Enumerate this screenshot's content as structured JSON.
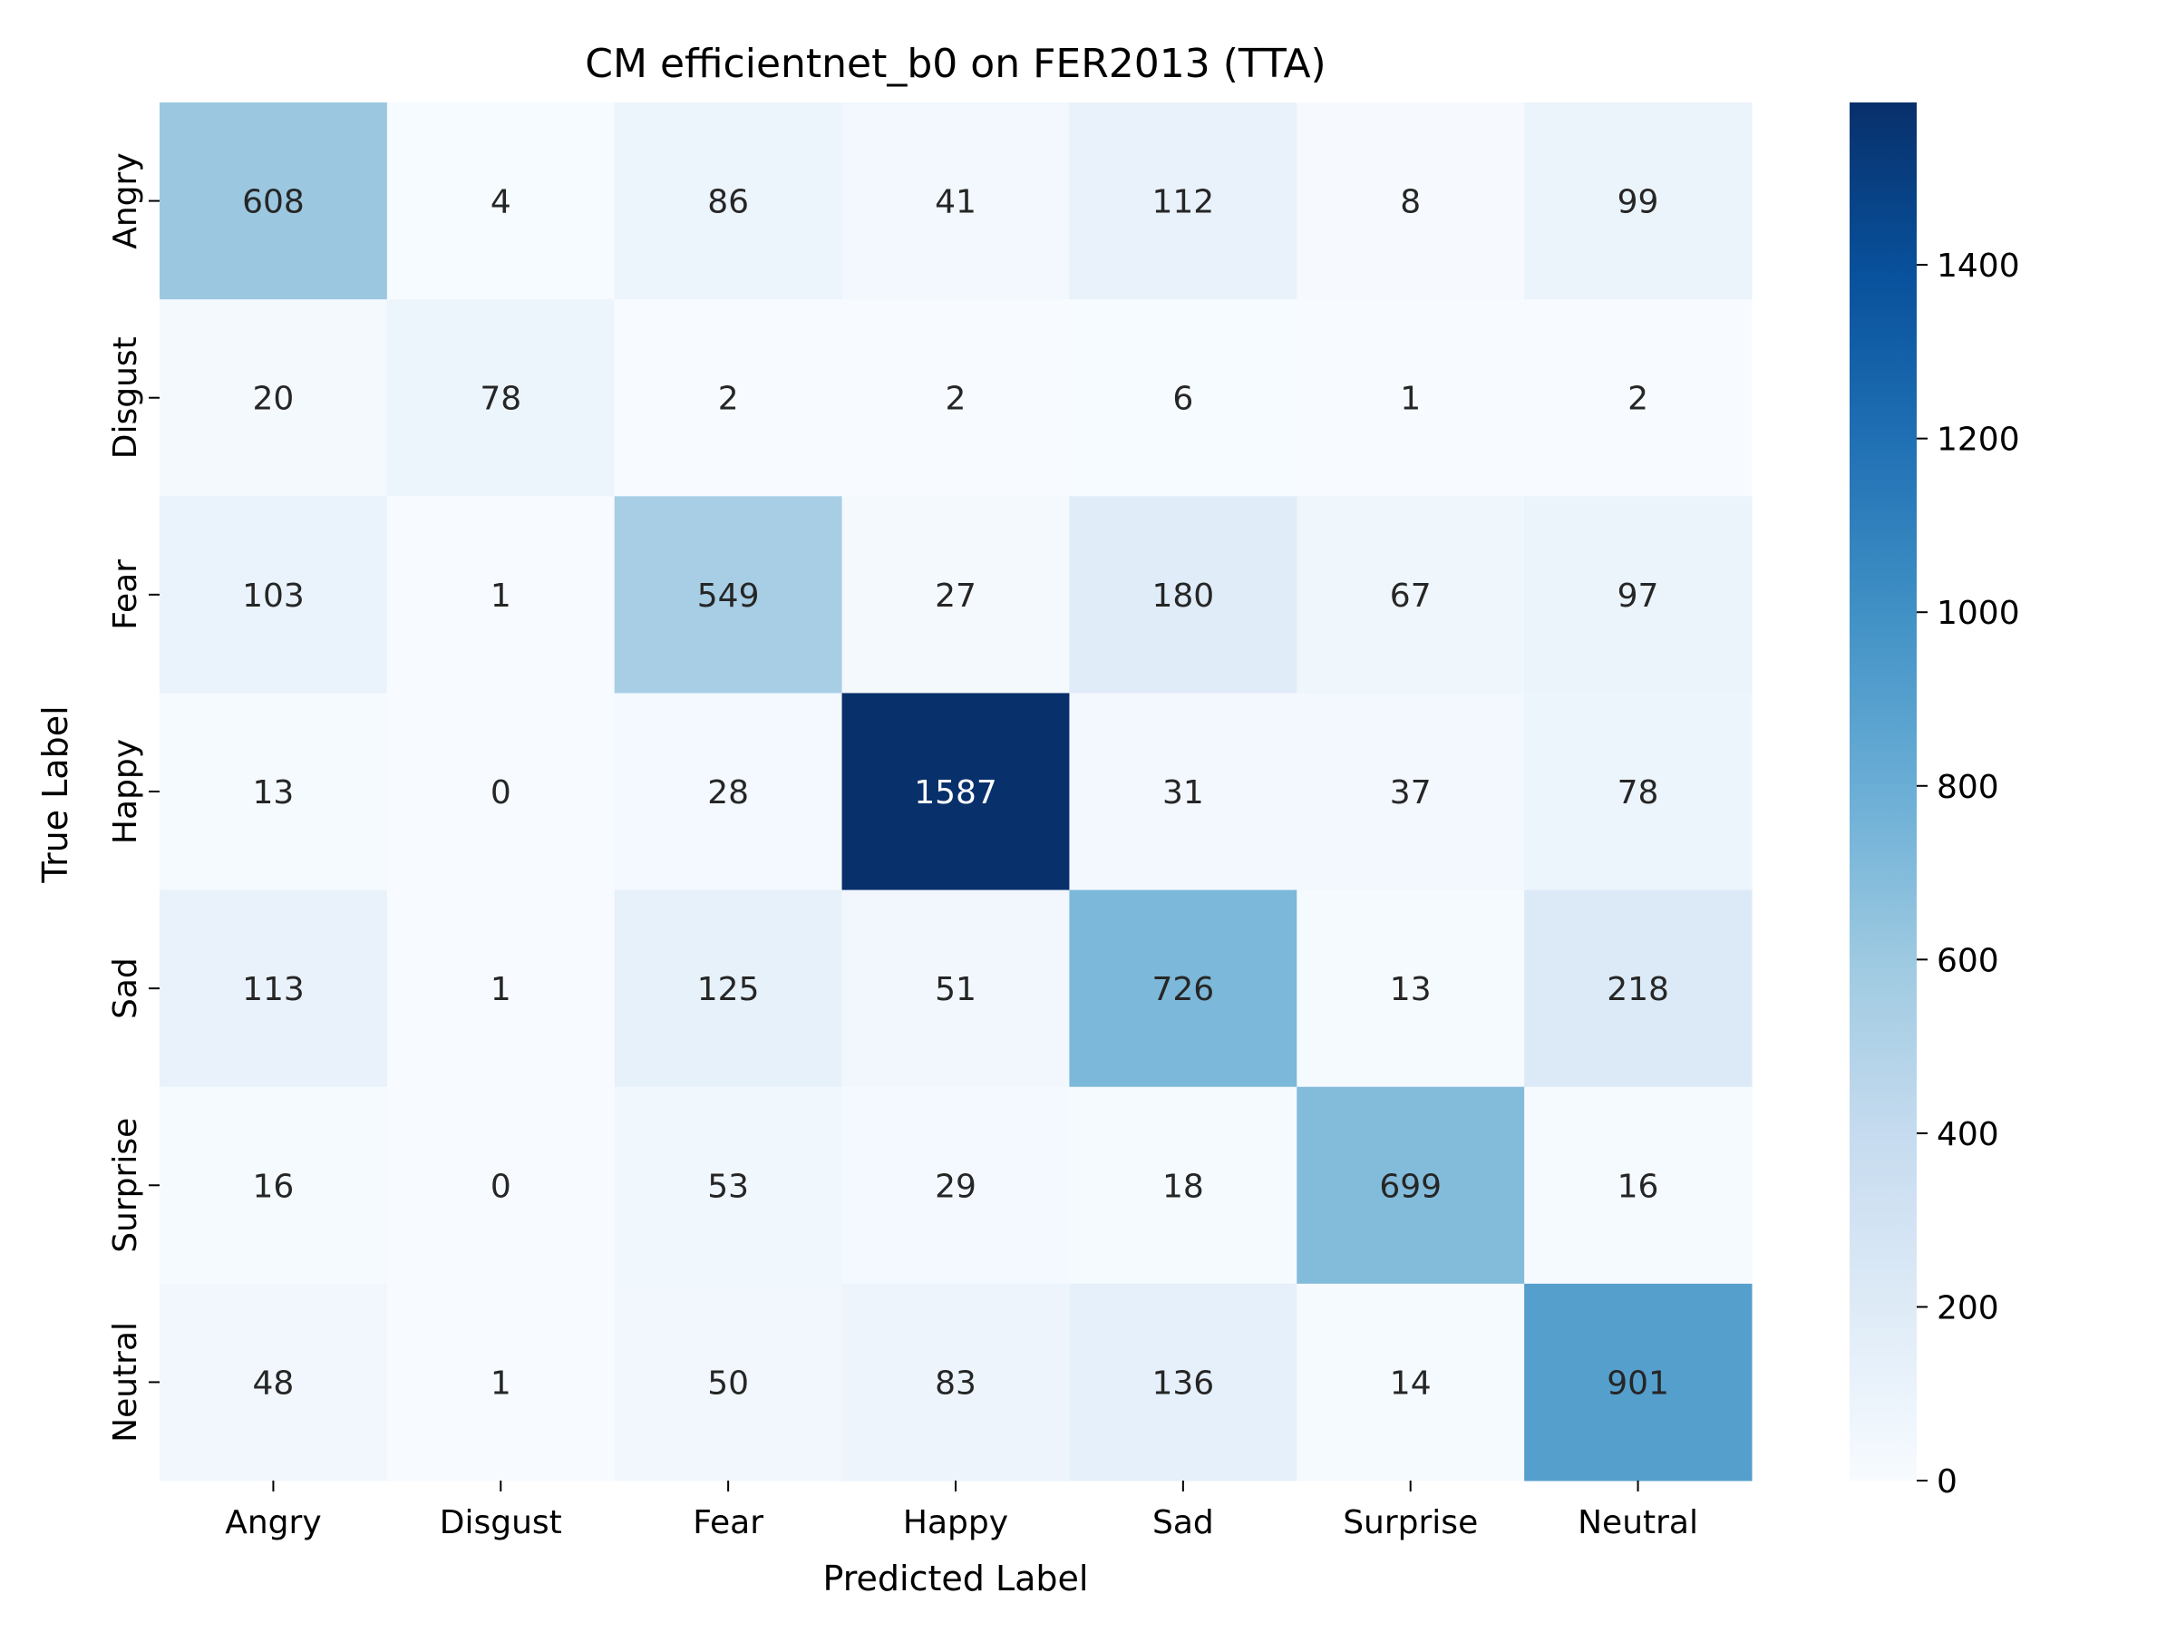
{
  "chart_data": {
    "type": "heatmap",
    "title": "CM efficientnet_b0 on FER2013 (TTA)",
    "xlabel": "Predicted Label",
    "ylabel": "True Label",
    "x_categories": [
      "Angry",
      "Disgust",
      "Fear",
      "Happy",
      "Sad",
      "Surprise",
      "Neutral"
    ],
    "y_categories": [
      "Angry",
      "Disgust",
      "Fear",
      "Happy",
      "Sad",
      "Surprise",
      "Neutral"
    ],
    "values": [
      [
        608,
        4,
        86,
        41,
        112,
        8,
        99
      ],
      [
        20,
        78,
        2,
        2,
        6,
        1,
        2
      ],
      [
        103,
        1,
        549,
        27,
        180,
        67,
        97
      ],
      [
        13,
        0,
        28,
        1587,
        31,
        37,
        78
      ],
      [
        113,
        1,
        125,
        51,
        726,
        13,
        218
      ],
      [
        16,
        0,
        53,
        29,
        18,
        699,
        16
      ],
      [
        48,
        1,
        50,
        83,
        136,
        14,
        901
      ]
    ],
    "colorbar": {
      "colormap": "Blues",
      "vmin": 0,
      "vmax": 1587,
      "ticks": [
        0,
        200,
        400,
        600,
        800,
        1000,
        1200,
        1400
      ],
      "tick_labels": [
        "0",
        "200",
        "400",
        "600",
        "800",
        "1000",
        "1200",
        "1400"
      ]
    },
    "grid": false,
    "annotations": "cell values shown"
  }
}
